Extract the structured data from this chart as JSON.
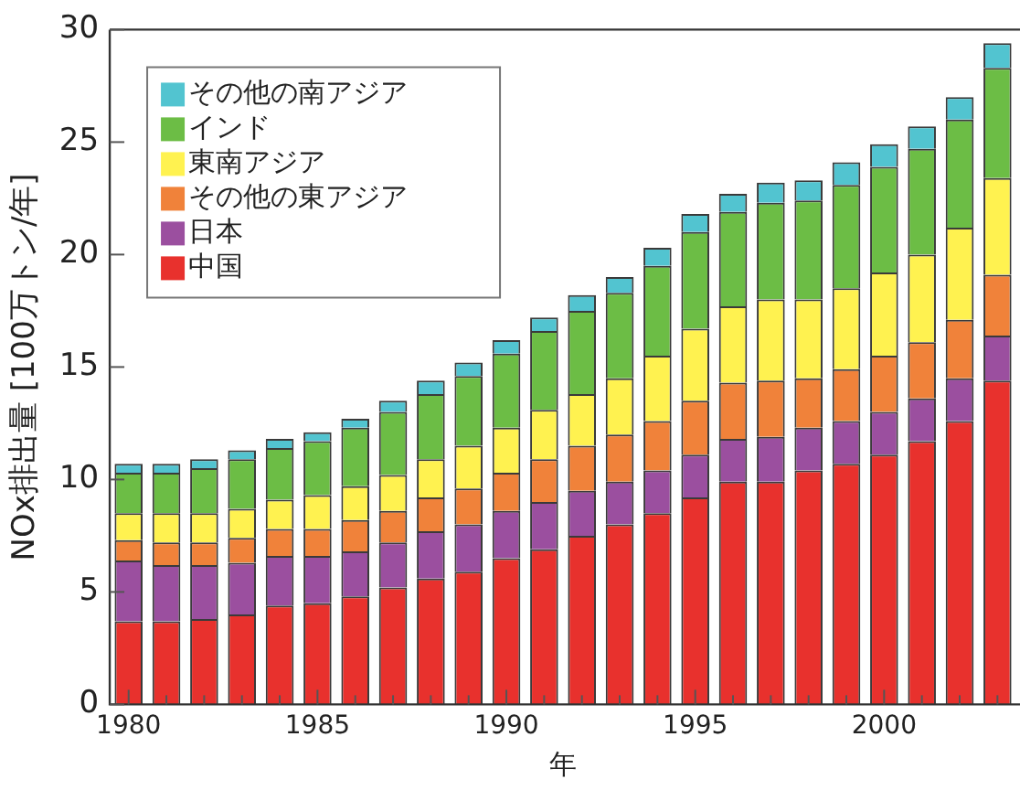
{
  "chart_data": {
    "type": "bar",
    "stacked": true,
    "xlabel": "年",
    "ylabel": "NOx排出量 [100万トン/年]",
    "x": [
      1980,
      1981,
      1982,
      1983,
      1984,
      1985,
      1986,
      1987,
      1988,
      1989,
      1990,
      1991,
      1992,
      1993,
      1994,
      1995,
      1996,
      1997,
      1998,
      1999,
      2000,
      2001,
      2002,
      2003
    ],
    "series": [
      {
        "name": "中国",
        "color": "#e8312d",
        "values": [
          3.7,
          3.7,
          3.8,
          4.0,
          4.4,
          4.5,
          4.8,
          5.2,
          5.6,
          5.9,
          6.5,
          6.9,
          7.5,
          8.0,
          8.5,
          9.2,
          9.9,
          9.9,
          10.4,
          10.7,
          11.1,
          11.7,
          12.6,
          14.4
        ]
      },
      {
        "name": "日本",
        "color": "#9b4f9f",
        "values": [
          2.7,
          2.5,
          2.4,
          2.3,
          2.2,
          2.1,
          2.0,
          2.0,
          2.1,
          2.1,
          2.1,
          2.1,
          2.0,
          1.9,
          1.9,
          1.9,
          1.9,
          2.0,
          1.9,
          1.9,
          1.9,
          1.9,
          1.9,
          2.0
        ]
      },
      {
        "name": "その他の東アジア",
        "color": "#f0823a",
        "values": [
          0.9,
          1.0,
          1.0,
          1.1,
          1.2,
          1.2,
          1.4,
          1.4,
          1.5,
          1.6,
          1.7,
          1.9,
          2.0,
          2.1,
          2.2,
          2.4,
          2.5,
          2.5,
          2.2,
          2.3,
          2.5,
          2.5,
          2.6,
          2.7
        ]
      },
      {
        "name": "東南アジア",
        "color": "#fff250",
        "values": [
          1.2,
          1.3,
          1.3,
          1.3,
          1.3,
          1.5,
          1.5,
          1.6,
          1.7,
          1.9,
          2.0,
          2.2,
          2.3,
          2.5,
          2.9,
          3.2,
          3.4,
          3.6,
          3.5,
          3.6,
          3.7,
          3.9,
          4.1,
          4.3
        ]
      },
      {
        "name": "インド",
        "color": "#6cbd45",
        "values": [
          1.8,
          1.8,
          2.0,
          2.2,
          2.3,
          2.4,
          2.6,
          2.8,
          2.9,
          3.1,
          3.3,
          3.5,
          3.7,
          3.8,
          4.0,
          4.3,
          4.2,
          4.3,
          4.4,
          4.6,
          4.7,
          4.7,
          4.8,
          4.9
        ]
      },
      {
        "name": "その他の南アジア",
        "color": "#52c4d0",
        "values": [
          0.4,
          0.4,
          0.4,
          0.4,
          0.4,
          0.4,
          0.4,
          0.5,
          0.6,
          0.6,
          0.6,
          0.6,
          0.7,
          0.7,
          0.8,
          0.8,
          0.8,
          0.9,
          0.9,
          1.0,
          1.0,
          1.0,
          1.0,
          1.1
        ]
      }
    ],
    "xlim": [
      1979.5,
      2003.5
    ],
    "xticks": [
      1980,
      {
        "value": 1981,
        "label": null
      },
      {
        "value": 1982,
        "label": null
      },
      {
        "value": 1983,
        "label": null
      },
      {
        "value": 1984,
        "label": null
      },
      1985,
      {
        "value": 1986,
        "label": null
      },
      {
        "value": 1987,
        "label": null
      },
      {
        "value": 1988,
        "label": null
      },
      {
        "value": 1989,
        "label": null
      },
      1990,
      {
        "value": 1991,
        "label": null
      },
      {
        "value": 1992,
        "label": null
      },
      {
        "value": 1993,
        "label": null
      },
      {
        "value": 1994,
        "label": null
      },
      1995,
      {
        "value": 1996,
        "label": null
      },
      {
        "value": 1997,
        "label": null
      },
      {
        "value": 1998,
        "label": null
      },
      {
        "value": 1999,
        "label": null
      },
      2000,
      {
        "value": 2001,
        "label": null
      },
      {
        "value": 2002,
        "label": null
      },
      {
        "value": 2003,
        "label": null
      }
    ],
    "ylim": [
      0,
      30
    ],
    "yticks": [
      0,
      5,
      10,
      15,
      20,
      25,
      30
    ],
    "legend": "top left",
    "grid": false
  }
}
